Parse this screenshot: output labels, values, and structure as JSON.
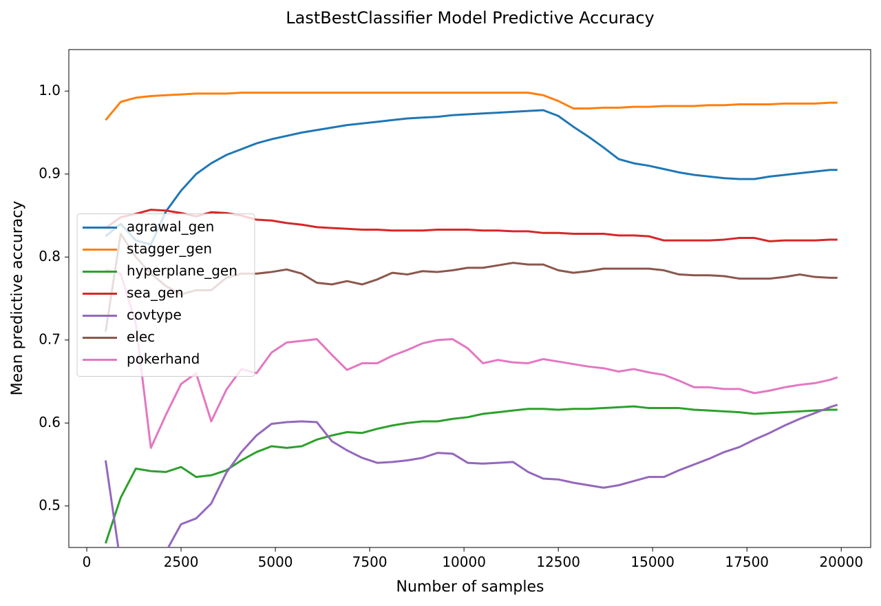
{
  "chart_data": {
    "type": "line",
    "title": "LastBestClassifier Model Predictive Accuracy",
    "x_label": "Number of samples",
    "y_label": "Mean predictive accuracy",
    "xlim": [
      -475,
      20780
    ],
    "ylim": [
      0.45,
      1.05
    ],
    "xticks": [
      0,
      2500,
      5000,
      7500,
      10000,
      12500,
      15000,
      17500,
      20000
    ],
    "yticks": [
      0.5,
      0.6,
      0.7,
      0.8,
      0.9,
      {
        "value": 1,
        "label": "1.0"
      }
    ],
    "legend": "center left",
    "x": [
      500,
      900,
      1300,
      1700,
      2100,
      2500,
      2900,
      3300,
      3700,
      4100,
      4500,
      4900,
      5300,
      5700,
      6100,
      6500,
      6900,
      7300,
      7700,
      8100,
      8500,
      8900,
      9300,
      9700,
      10100,
      10500,
      10900,
      11300,
      11700,
      12100,
      12500,
      12900,
      13300,
      13700,
      14100,
      14500,
      14900,
      15300,
      15700,
      16100,
      16500,
      16900,
      17300,
      17700,
      18100,
      18500,
      18900,
      19300,
      19700,
      19900
    ],
    "series": [
      {
        "name": "agrawal_gen",
        "color": "#1f77b4",
        "values": [
          0.825,
          0.84,
          0.82,
          0.815,
          0.855,
          0.88,
          0.9,
          0.913,
          0.923,
          0.93,
          0.937,
          0.942,
          0.946,
          0.95,
          0.953,
          0.956,
          0.959,
          0.961,
          0.963,
          0.965,
          0.967,
          0.968,
          0.969,
          0.971,
          0.972,
          0.973,
          0.974,
          0.975,
          0.976,
          0.977,
          0.97,
          0.957,
          0.945,
          0.932,
          0.918,
          0.913,
          0.91,
          0.906,
          0.902,
          0.899,
          0.897,
          0.895,
          0.894,
          0.894,
          0.897,
          0.899,
          0.901,
          0.903,
          0.905,
          0.905
        ]
      },
      {
        "name": "stagger_gen",
        "color": "#ff7f0e",
        "values": [
          0.965,
          0.987,
          0.992,
          0.994,
          0.995,
          0.996,
          0.997,
          0.997,
          0.997,
          0.998,
          0.998,
          0.998,
          0.998,
          0.998,
          0.998,
          0.998,
          0.998,
          0.998,
          0.998,
          0.998,
          0.998,
          0.998,
          0.998,
          0.998,
          0.998,
          0.998,
          0.998,
          0.998,
          0.998,
          0.995,
          0.988,
          0.979,
          0.979,
          0.98,
          0.98,
          0.981,
          0.981,
          0.982,
          0.982,
          0.982,
          0.983,
          0.983,
          0.984,
          0.984,
          0.984,
          0.985,
          0.985,
          0.985,
          0.986,
          0.986
        ]
      },
      {
        "name": "hyperplane_gen",
        "color": "#2ca02c",
        "values": [
          0.455,
          0.51,
          0.545,
          0.542,
          0.541,
          0.547,
          0.535,
          0.537,
          0.543,
          0.555,
          0.565,
          0.572,
          0.57,
          0.572,
          0.58,
          0.585,
          0.589,
          0.588,
          0.593,
          0.597,
          0.6,
          0.602,
          0.602,
          0.605,
          0.607,
          0.611,
          0.613,
          0.615,
          0.617,
          0.617,
          0.616,
          0.617,
          0.617,
          0.618,
          0.619,
          0.62,
          0.618,
          0.618,
          0.618,
          0.616,
          0.615,
          0.614,
          0.613,
          0.611,
          0.612,
          0.613,
          0.614,
          0.615,
          0.616,
          0.616
        ]
      },
      {
        "name": "sea_gen",
        "color": "#d62728",
        "values": [
          0.835,
          0.848,
          0.852,
          0.857,
          0.856,
          0.853,
          0.849,
          0.854,
          0.853,
          0.85,
          0.845,
          0.844,
          0.841,
          0.839,
          0.836,
          0.835,
          0.834,
          0.833,
          0.833,
          0.832,
          0.832,
          0.832,
          0.833,
          0.833,
          0.833,
          0.832,
          0.832,
          0.831,
          0.831,
          0.829,
          0.829,
          0.828,
          0.828,
          0.828,
          0.826,
          0.826,
          0.825,
          0.82,
          0.82,
          0.82,
          0.82,
          0.821,
          0.823,
          0.823,
          0.819,
          0.82,
          0.82,
          0.82,
          0.821,
          0.821
        ]
      },
      {
        "name": "covtype",
        "color": "#9467bd",
        "values": [
          0.555,
          0.43,
          0.42,
          0.44,
          0.445,
          0.478,
          0.485,
          0.503,
          0.54,
          0.565,
          0.585,
          0.599,
          0.601,
          0.602,
          0.601,
          0.578,
          0.567,
          0.558,
          0.552,
          0.553,
          0.555,
          0.558,
          0.564,
          0.563,
          0.552,
          0.551,
          0.552,
          0.553,
          0.541,
          0.533,
          0.532,
          0.528,
          0.525,
          0.522,
          0.525,
          0.53,
          0.535,
          0.535,
          0.543,
          0.55,
          0.557,
          0.565,
          0.571,
          0.58,
          0.588,
          0.597,
          0.605,
          0.612,
          0.619,
          0.622
        ]
      },
      {
        "name": "elec",
        "color": "#8c564b",
        "values": [
          0.71,
          0.828,
          0.8,
          0.78,
          0.765,
          0.755,
          0.76,
          0.76,
          0.775,
          0.78,
          0.78,
          0.782,
          0.785,
          0.78,
          0.769,
          0.767,
          0.771,
          0.767,
          0.773,
          0.781,
          0.779,
          0.783,
          0.782,
          0.784,
          0.787,
          0.787,
          0.79,
          0.793,
          0.791,
          0.791,
          0.784,
          0.781,
          0.783,
          0.786,
          0.786,
          0.786,
          0.786,
          0.784,
          0.779,
          0.778,
          0.778,
          0.777,
          0.774,
          0.774,
          0.774,
          0.776,
          0.779,
          0.776,
          0.775,
          0.775
        ]
      },
      {
        "name": "pokerhand",
        "color": "#e377c2",
        "values": [
          0.785,
          0.78,
          0.72,
          0.57,
          0.61,
          0.647,
          0.66,
          0.602,
          0.64,
          0.665,
          0.66,
          0.685,
          0.697,
          0.699,
          0.701,
          0.682,
          0.664,
          0.672,
          0.672,
          0.681,
          0.688,
          0.696,
          0.7,
          0.701,
          0.69,
          0.672,
          0.676,
          0.673,
          0.672,
          0.677,
          0.674,
          0.671,
          0.668,
          0.666,
          0.662,
          0.665,
          0.661,
          0.658,
          0.651,
          0.643,
          0.643,
          0.641,
          0.641,
          0.636,
          0.639,
          0.643,
          0.646,
          0.648,
          0.652,
          0.655
        ]
      }
    ]
  }
}
